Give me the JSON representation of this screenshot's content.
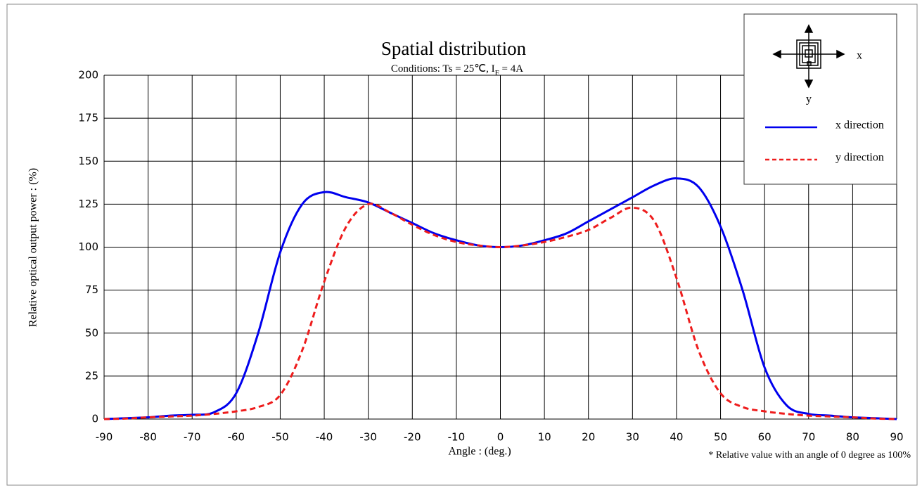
{
  "chart_data": {
    "type": "line",
    "title": "Spatial distribution",
    "subtitle": [
      "Conditions: Ts = 25℃, I",
      "F",
      " = 4A"
    ],
    "xlabel": "Angle : (deg.)",
    "ylabel": "Relative optical output power : (%)",
    "note": "* Relative value with an angle of 0 degree as 100%",
    "icon_labels": [
      "x",
      "y"
    ],
    "x": [
      -90,
      -85,
      -80,
      -75,
      -70,
      -65,
      -60,
      -55,
      -50,
      -45,
      -40,
      -35,
      -30,
      -25,
      -20,
      -15,
      -10,
      -5,
      0,
      5,
      10,
      15,
      20,
      25,
      30,
      35,
      40,
      45,
      50,
      55,
      60,
      65,
      70,
      75,
      80,
      85,
      90
    ],
    "series": [
      {
        "name": "x direction",
        "color": "#0000ee",
        "dash": false,
        "values": [
          0,
          0.5,
          1,
          2,
          2.5,
          4,
          15,
          50,
          97,
          125,
          132,
          129,
          126,
          120,
          114,
          108,
          104,
          101,
          100,
          101,
          104,
          108,
          115,
          122,
          129,
          136,
          140,
          135,
          112,
          75,
          30,
          8,
          3,
          2,
          1,
          0.5,
          0
        ]
      },
      {
        "name": "y direction",
        "color": "#ee1c1c",
        "dash": true,
        "values": [
          0,
          0.3,
          1,
          1.5,
          2,
          3,
          4.5,
          7,
          14,
          40,
          80,
          112,
          125,
          120,
          113,
          107,
          103,
          101,
          100,
          101,
          103,
          106,
          110,
          117,
          123,
          115,
          82,
          40,
          15,
          7,
          4.5,
          3,
          2,
          1.5,
          1,
          0.3,
          0
        ]
      }
    ],
    "xlim": [
      -90,
      90
    ],
    "xticks": [
      -90,
      -80,
      -70,
      -60,
      -50,
      -40,
      -30,
      -20,
      -10,
      0,
      10,
      20,
      30,
      40,
      50,
      60,
      70,
      80,
      90
    ],
    "ylim": [
      0,
      200
    ],
    "yticks": [
      0,
      25,
      50,
      75,
      100,
      125,
      150,
      175,
      200
    ],
    "grid": true,
    "legend": "upper right"
  }
}
